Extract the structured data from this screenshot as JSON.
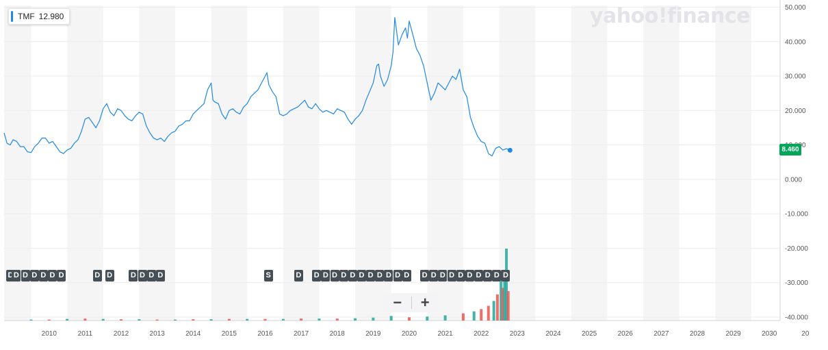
{
  "legend": {
    "symbol": "TMF",
    "value": "12.980"
  },
  "logo_text": "yahoo!finance",
  "last_price": "8.460",
  "zoom": {
    "out_label": "−",
    "in_label": "+"
  },
  "colors": {
    "line": "#1e88e5",
    "up_volume": "#26a69a",
    "down_volume": "#ef5350",
    "price_tag": "#00a65a",
    "band": "#f5f5f5"
  },
  "event_badges": [
    {
      "label": "D",
      "date": 2009.42
    },
    {
      "label": "D",
      "date": 2009.58
    },
    {
      "label": "D",
      "date": 2009.83
    },
    {
      "label": "D",
      "date": 2010.08
    },
    {
      "label": "D",
      "date": 2010.33
    },
    {
      "label": "D",
      "date": 2010.58
    },
    {
      "label": "D",
      "date": 2010.83
    },
    {
      "label": "D",
      "date": 2011.83
    },
    {
      "label": "D",
      "date": 2012.17
    },
    {
      "label": "D",
      "date": 2012.83
    },
    {
      "label": "D",
      "date": 2013.08
    },
    {
      "label": "D",
      "date": 2013.33
    },
    {
      "label": "D",
      "date": 2013.58
    },
    {
      "label": "S",
      "date": 2016.58
    },
    {
      "label": "D",
      "date": 2017.42
    },
    {
      "label": "D",
      "date": 2017.92
    },
    {
      "label": "D",
      "date": 2018.17
    },
    {
      "label": "D",
      "date": 2018.42
    },
    {
      "label": "D",
      "date": 2018.67
    },
    {
      "label": "D",
      "date": 2018.92
    },
    {
      "label": "D",
      "date": 2019.17
    },
    {
      "label": "D",
      "date": 2019.42
    },
    {
      "label": "D",
      "date": 2019.67
    },
    {
      "label": "D",
      "date": 2019.92
    },
    {
      "label": "D",
      "date": 2020.17
    },
    {
      "label": "D",
      "date": 2020.42
    },
    {
      "label": "D",
      "date": 2020.92
    },
    {
      "label": "D",
      "date": 2021.17
    },
    {
      "label": "D",
      "date": 2021.42
    },
    {
      "label": "D",
      "date": 2021.67
    },
    {
      "label": "D",
      "date": 2021.92
    },
    {
      "label": "D",
      "date": 2022.17
    },
    {
      "label": "D",
      "date": 2022.42
    },
    {
      "label": "D",
      "date": 2022.67
    },
    {
      "label": "D",
      "date": 2022.92
    },
    {
      "label": "D",
      "date": 2023.17
    }
  ],
  "chart_data": {
    "type": "line",
    "title": "",
    "xlabel": "",
    "ylabel": "",
    "x_ticks": [
      "2010",
      "2011",
      "2012",
      "2013",
      "2014",
      "2015",
      "2016",
      "2017",
      "2018",
      "2019",
      "2020",
      "2021",
      "2022",
      "2023",
      "2024",
      "2025",
      "2026",
      "2027",
      "2028",
      "2029",
      "2030",
      "20"
    ],
    "y_ticks": [
      "50.000",
      "40.000",
      "30.000",
      "20.000",
      "10.000",
      "0.000",
      "-10.000",
      "-20.000",
      "-30.000",
      "-40.000"
    ],
    "xlim": [
      2009.25,
      2030.8
    ],
    "ylim": [
      -41,
      50.5
    ],
    "grid": true,
    "series": [
      {
        "name": "TMF",
        "x": [
          2009.25,
          2009.33,
          2009.42,
          2009.5,
          2009.6,
          2009.7,
          2009.8,
          2009.9,
          2010.0,
          2010.1,
          2010.2,
          2010.3,
          2010.4,
          2010.5,
          2010.6,
          2010.7,
          2010.8,
          2010.9,
          2011.0,
          2011.1,
          2011.2,
          2011.3,
          2011.4,
          2011.5,
          2011.6,
          2011.7,
          2011.8,
          2011.9,
          2012.0,
          2012.1,
          2012.2,
          2012.3,
          2012.4,
          2012.5,
          2012.6,
          2012.7,
          2012.8,
          2012.9,
          2013.0,
          2013.1,
          2013.2,
          2013.3,
          2013.4,
          2013.5,
          2013.6,
          2013.7,
          2013.8,
          2013.9,
          2014.0,
          2014.1,
          2014.2,
          2014.3,
          2014.4,
          2014.5,
          2014.6,
          2014.7,
          2014.8,
          2014.9,
          2015.0,
          2015.05,
          2015.1,
          2015.2,
          2015.3,
          2015.4,
          2015.5,
          2015.6,
          2015.7,
          2015.8,
          2015.9,
          2016.0,
          2016.1,
          2016.2,
          2016.3,
          2016.4,
          2016.5,
          2016.55,
          2016.6,
          2016.7,
          2016.8,
          2016.9,
          2017.0,
          2017.1,
          2017.2,
          2017.3,
          2017.4,
          2017.5,
          2017.6,
          2017.7,
          2017.8,
          2017.9,
          2018.0,
          2018.1,
          2018.2,
          2018.3,
          2018.4,
          2018.5,
          2018.6,
          2018.7,
          2018.8,
          2018.9,
          2019.0,
          2019.1,
          2019.2,
          2019.3,
          2019.4,
          2019.5,
          2019.6,
          2019.65,
          2019.7,
          2019.8,
          2019.9,
          2020.0,
          2020.05,
          2020.1,
          2020.15,
          2020.2,
          2020.3,
          2020.4,
          2020.45,
          2020.5,
          2020.6,
          2020.7,
          2020.8,
          2020.9,
          2021.0,
          2021.1,
          2021.2,
          2021.3,
          2021.4,
          2021.5,
          2021.6,
          2021.7,
          2021.8,
          2021.9,
          2022.0,
          2022.1,
          2022.2,
          2022.3,
          2022.4,
          2022.5,
          2022.6,
          2022.7,
          2022.8,
          2022.9,
          2023.0,
          2023.1,
          2023.2,
          2023.3
        ],
        "values": [
          13.5,
          10.5,
          10,
          11.5,
          11,
          9.5,
          9.5,
          8,
          7.8,
          9.5,
          10.5,
          12,
          12,
          10.5,
          11,
          9.5,
          8,
          7.5,
          8.5,
          9,
          10.5,
          11.5,
          14,
          17.5,
          18,
          16.5,
          15,
          17,
          20.5,
          22,
          19.5,
          18.5,
          20.5,
          20,
          18.5,
          17.5,
          17,
          18.5,
          19.5,
          19,
          15.5,
          13.5,
          12,
          11.5,
          12,
          11,
          12.5,
          13.5,
          14,
          15.5,
          16,
          17,
          17,
          19,
          20,
          21,
          22,
          26,
          28,
          23,
          22.5,
          22,
          19,
          17.5,
          20,
          20.5,
          19.5,
          19,
          21,
          22,
          24,
          25,
          26,
          28,
          30,
          31,
          27.5,
          25.5,
          24,
          19,
          18.5,
          19,
          20,
          20.5,
          21,
          22,
          23,
          21,
          20.5,
          22,
          20.5,
          19.5,
          20,
          19.5,
          19,
          20.5,
          20,
          19.5,
          17.5,
          16,
          17.5,
          18.5,
          20,
          23,
          25.5,
          28,
          33,
          33.5,
          30,
          27,
          29,
          33,
          37,
          47,
          43,
          39,
          42,
          44,
          41,
          46,
          42,
          38,
          36,
          33,
          28,
          23,
          25,
          28,
          27,
          26,
          28,
          30,
          29,
          32,
          26,
          24,
          18,
          15,
          12.5,
          11,
          10.5,
          7.5,
          6.8,
          9,
          9.5,
          8.5,
          8.9,
          8.46
        ]
      }
    ],
    "volume": {
      "x": [
        2010.0,
        2010.5,
        2011.0,
        2011.5,
        2012.0,
        2012.5,
        2013.0,
        2013.5,
        2014.0,
        2014.5,
        2015.0,
        2015.5,
        2016.0,
        2016.5,
        2017.0,
        2017.5,
        2018.0,
        2018.5,
        2019.0,
        2019.5,
        2020.0,
        2020.5,
        2021.0,
        2021.5,
        2022.0,
        2022.3,
        2022.5,
        2022.7,
        2022.85,
        2022.95,
        2023.05,
        2023.1,
        2023.15,
        2023.2,
        2023.25
      ],
      "values": [
        0.3,
        0.3,
        0.5,
        0.6,
        0.5,
        0.4,
        0.4,
        0.3,
        0.3,
        0.4,
        0.4,
        0.5,
        0.5,
        0.5,
        0.5,
        0.6,
        0.6,
        0.6,
        0.7,
        0.9,
        1.4,
        1.0,
        1.2,
        1.6,
        2.2,
        2.8,
        3.5,
        4.5,
        6,
        8,
        12,
        10,
        14,
        22,
        9
      ],
      "up": [
        true,
        false,
        true,
        false,
        true,
        false,
        true,
        false,
        true,
        false,
        true,
        false,
        true,
        false,
        true,
        false,
        true,
        false,
        true,
        true,
        true,
        false,
        true,
        true,
        false,
        true,
        false,
        false,
        true,
        false,
        true,
        false,
        true,
        true,
        false
      ]
    },
    "last_value": 8.46,
    "last_date": 2023.3
  }
}
